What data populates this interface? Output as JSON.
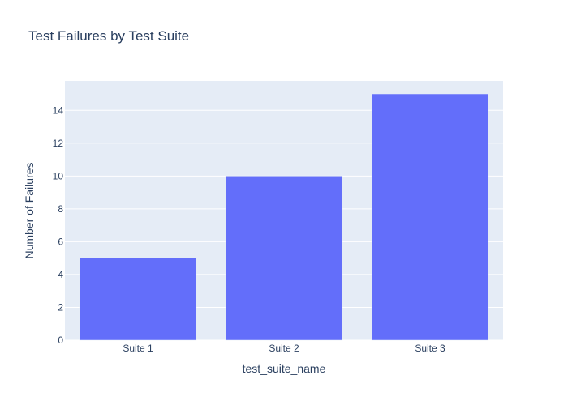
{
  "chart_data": {
    "type": "bar",
    "title": "Test Failures by Test Suite",
    "xlabel": "test_suite_name",
    "ylabel": "Number of Failures",
    "categories": [
      "Suite 1",
      "Suite 2",
      "Suite 3"
    ],
    "values": [
      5,
      10,
      15
    ],
    "ylim": [
      0,
      15.79
    ],
    "yticks": [
      0,
      2,
      4,
      6,
      8,
      10,
      12,
      14
    ],
    "grid": true,
    "legend": "none",
    "colors": {
      "bar": "#636efa",
      "plot_background": "#e5ecf6",
      "gridline": "#ffffff",
      "text": "#2a3f5f"
    }
  }
}
